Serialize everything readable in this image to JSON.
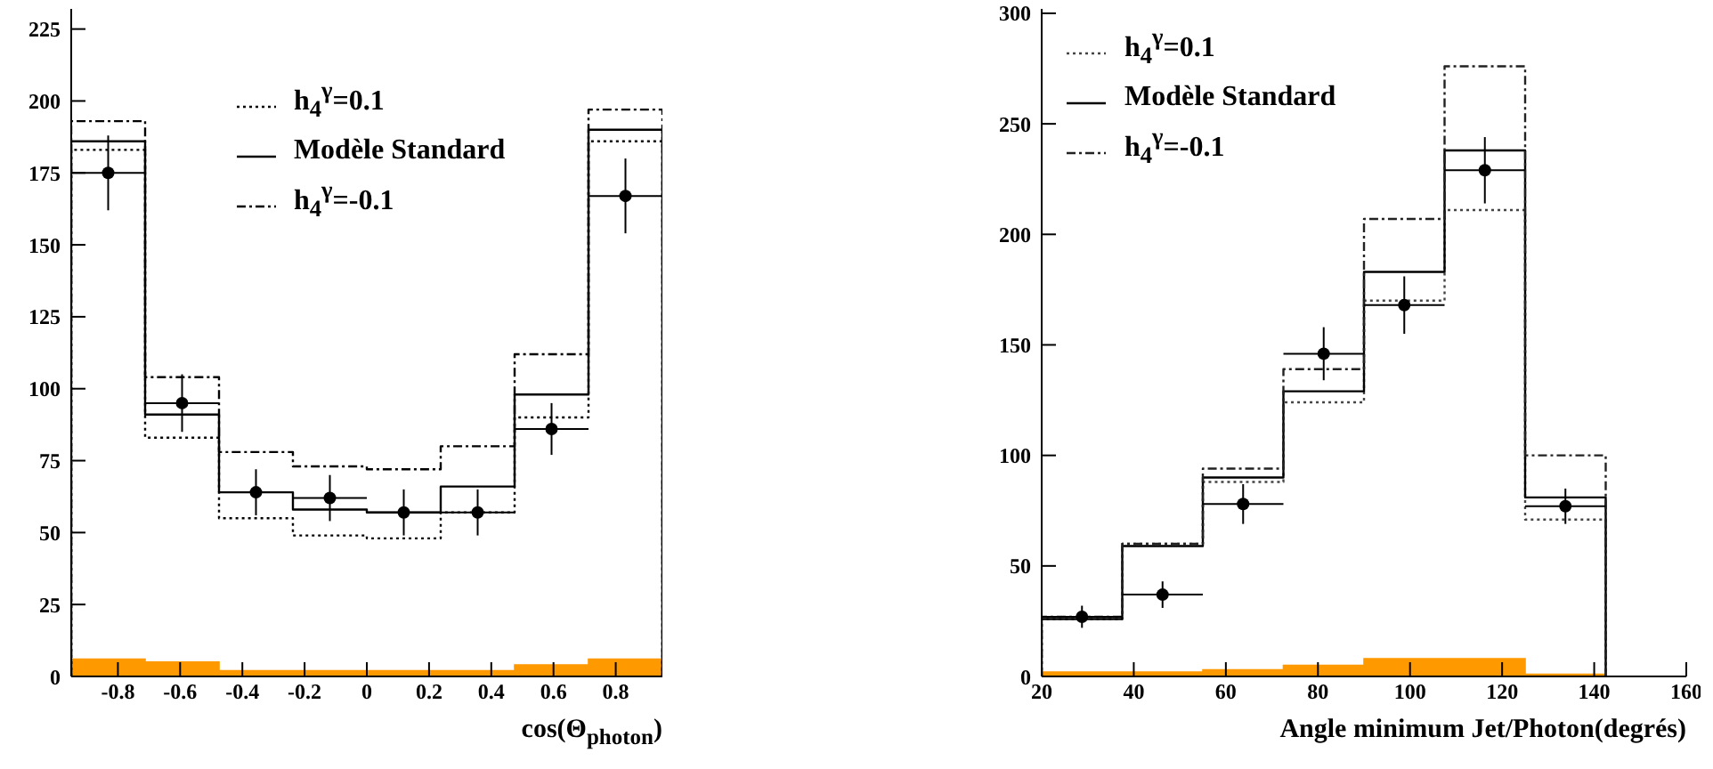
{
  "chart_data": [
    {
      "type": "histogram",
      "xlabel": "cos(Θ$_{photon}$)",
      "bins": [
        -0.95,
        -0.7125,
        -0.475,
        -0.2375,
        0,
        0.2375,
        0.475,
        0.7125,
        0.95
      ],
      "xlim": [
        -0.95,
        0.95
      ],
      "xticks": [
        -0.8,
        -0.6,
        -0.4,
        -0.2,
        0,
        0.2,
        0.4,
        0.6,
        0.8
      ],
      "ylim": [
        0,
        232
      ],
      "yticks": [
        0,
        25,
        50,
        75,
        100,
        125,
        150,
        175,
        200,
        225
      ],
      "legend": "top",
      "series": [
        {
          "color": "#ff9900",
          "values": [
            6,
            5,
            2,
            2,
            2,
            2,
            4,
            6
          ]
        },
        {
          "name": "h$_{4}$$^{γ}$=0.1",
          "color": "#000000",
          "line_style": "dotted",
          "values": [
            183,
            83,
            55,
            49,
            48,
            57,
            90,
            186
          ]
        },
        {
          "name": "Modèle Standard",
          "color": "#000000",
          "line_style": "solid",
          "values": [
            186,
            91,
            64,
            58,
            57,
            66,
            98,
            190
          ]
        },
        {
          "name": "h$_{4}$$^{γ}$=-0.1",
          "color": "#000000",
          "line_style": "dashed",
          "values": [
            193,
            104,
            78,
            73,
            72,
            80,
            112,
            197
          ]
        },
        {
          "type": "scatter",
          "color": "#000000",
          "marker": "circle",
          "x": [
            -0.83125,
            -0.59375,
            -0.35625,
            -0.11875,
            0.11875,
            0.35625,
            0.59375,
            0.83125
          ],
          "values": [
            175,
            95,
            64,
            62,
            57,
            57,
            86,
            167
          ],
          "errors": [
            13,
            10,
            8,
            8,
            8,
            8,
            9,
            13
          ],
          "xerrors": [
            0.11875,
            0.11875,
            0.11875,
            0.11875,
            0.11875,
            0.11875,
            0.11875,
            0.11875
          ]
        }
      ]
    },
    {
      "type": "histogram",
      "xlabel": "Angle minimum Jet/Photon(degrés)",
      "bins": [
        20,
        37.5,
        55,
        72.5,
        90,
        107.5,
        125,
        142.5
      ],
      "xlim": [
        20,
        160
      ],
      "xticks": [
        20,
        40,
        60,
        80,
        100,
        120,
        140,
        160
      ],
      "ylim": [
        0,
        302
      ],
      "yticks": [
        0,
        50,
        100,
        150,
        200,
        250,
        300
      ],
      "legend": "top left",
      "series": [
        {
          "color": "#ff9900",
          "values": [
            2,
            2,
            3,
            5,
            8,
            8,
            1
          ]
        },
        {
          "name": "h$_{4}$$^{γ}$=0.1",
          "color": "#444444",
          "line_style": "dotted",
          "values": [
            26,
            60,
            88,
            124,
            170,
            211,
            71
          ]
        },
        {
          "name": "Modèle Standard",
          "color": "#000000",
          "line_style": "solid",
          "values": [
            26,
            59,
            90,
            129,
            183,
            238,
            81
          ]
        },
        {
          "name": "h$_{4}$$^{γ}$=-0.1",
          "color": "#222222",
          "line_style": "dashed",
          "values": [
            27,
            60,
            94,
            139,
            207,
            276,
            100
          ]
        },
        {
          "type": "scatter",
          "color": "#000000",
          "marker": "circle",
          "x": [
            28.75,
            46.25,
            63.75,
            81.25,
            98.75,
            116.25,
            133.75
          ],
          "values": [
            27,
            37,
            78,
            146,
            168,
            229,
            77
          ],
          "errors": [
            5,
            6,
            9,
            12,
            13,
            15,
            8
          ],
          "xerrors": [
            8.75,
            8.75,
            8.75,
            8.75,
            8.75,
            8.75,
            8.75
          ]
        }
      ]
    }
  ]
}
